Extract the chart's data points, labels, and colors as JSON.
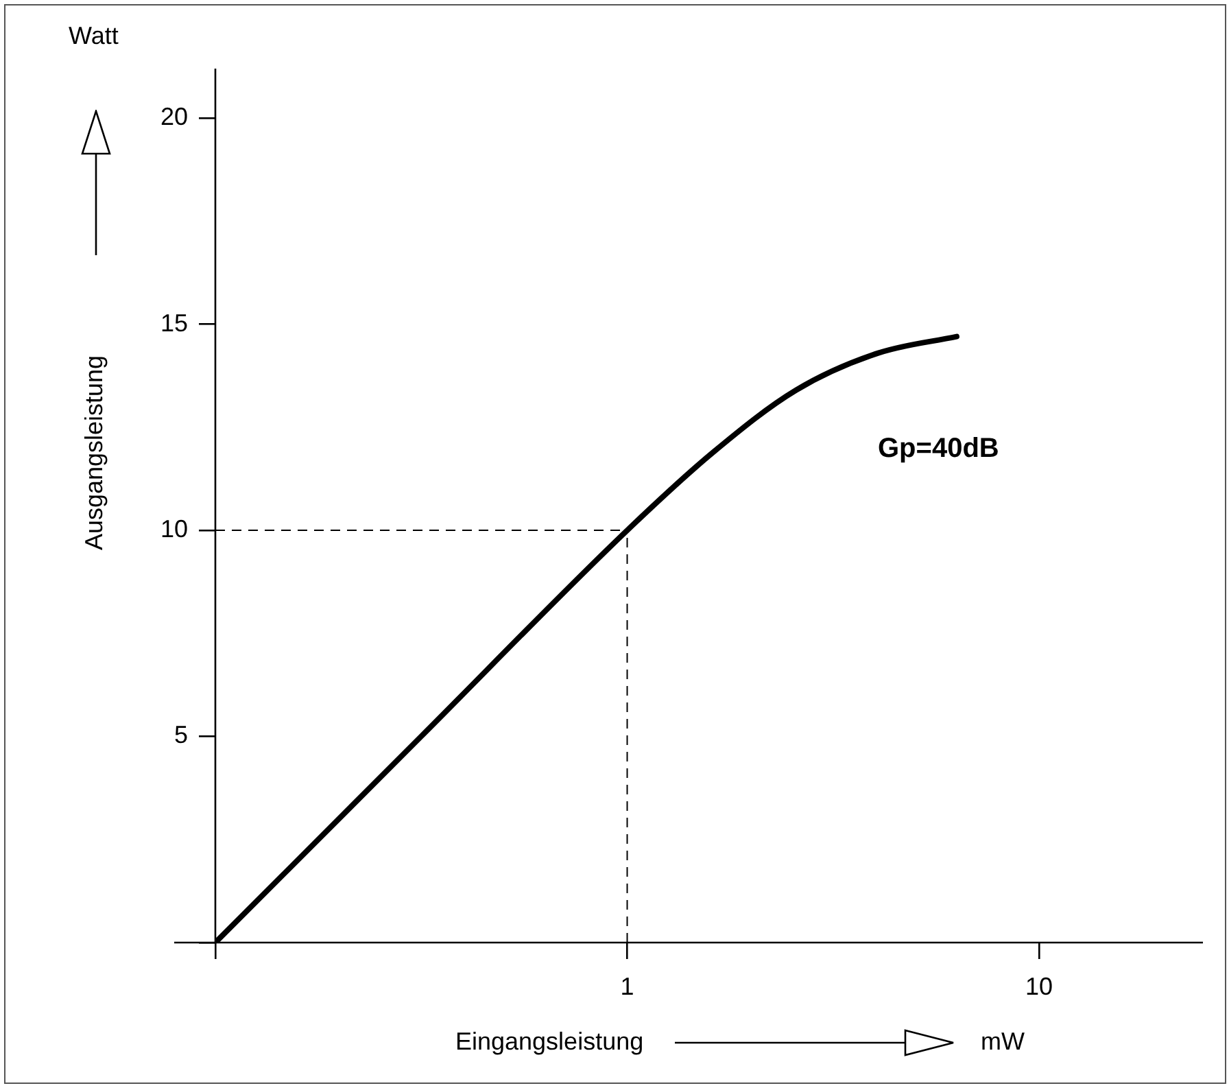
{
  "chart_data": {
    "type": "line",
    "xlabel": "Eingangsleistung",
    "ylabel": "Ausgangsleistung",
    "annotations": [
      "Watt",
      "mW",
      "Gp=40dB"
    ],
    "log": "x",
    "xlim": [
      0.1,
      25
    ],
    "xticks": [
      {
        "value": 0.1,
        "label": null
      },
      1,
      10
    ],
    "ylim": [
      0,
      21.2
    ],
    "yticks": [
      {
        "value": 0,
        "label": null
      },
      5,
      10,
      15,
      20
    ],
    "series": [
      {
        "color": "#000000",
        "x": [
          0.1,
          0.316,
          1,
          1.62,
          2.57,
          4.07,
          6.31
        ],
        "values": [
          0,
          5,
          10,
          11.9,
          13.4,
          14.3,
          14.7
        ]
      }
    ],
    "ref_lines": [
      {
        "axis": "x",
        "value": 1,
        "color": "#000000",
        "line_style": "dashed"
      },
      {
        "axis": "y",
        "value": 10,
        "color": "#000000",
        "line_style": "dashed"
      }
    ],
    "grid": false,
    "legend": false,
    "marker": "none",
    "line_style": "solid"
  }
}
